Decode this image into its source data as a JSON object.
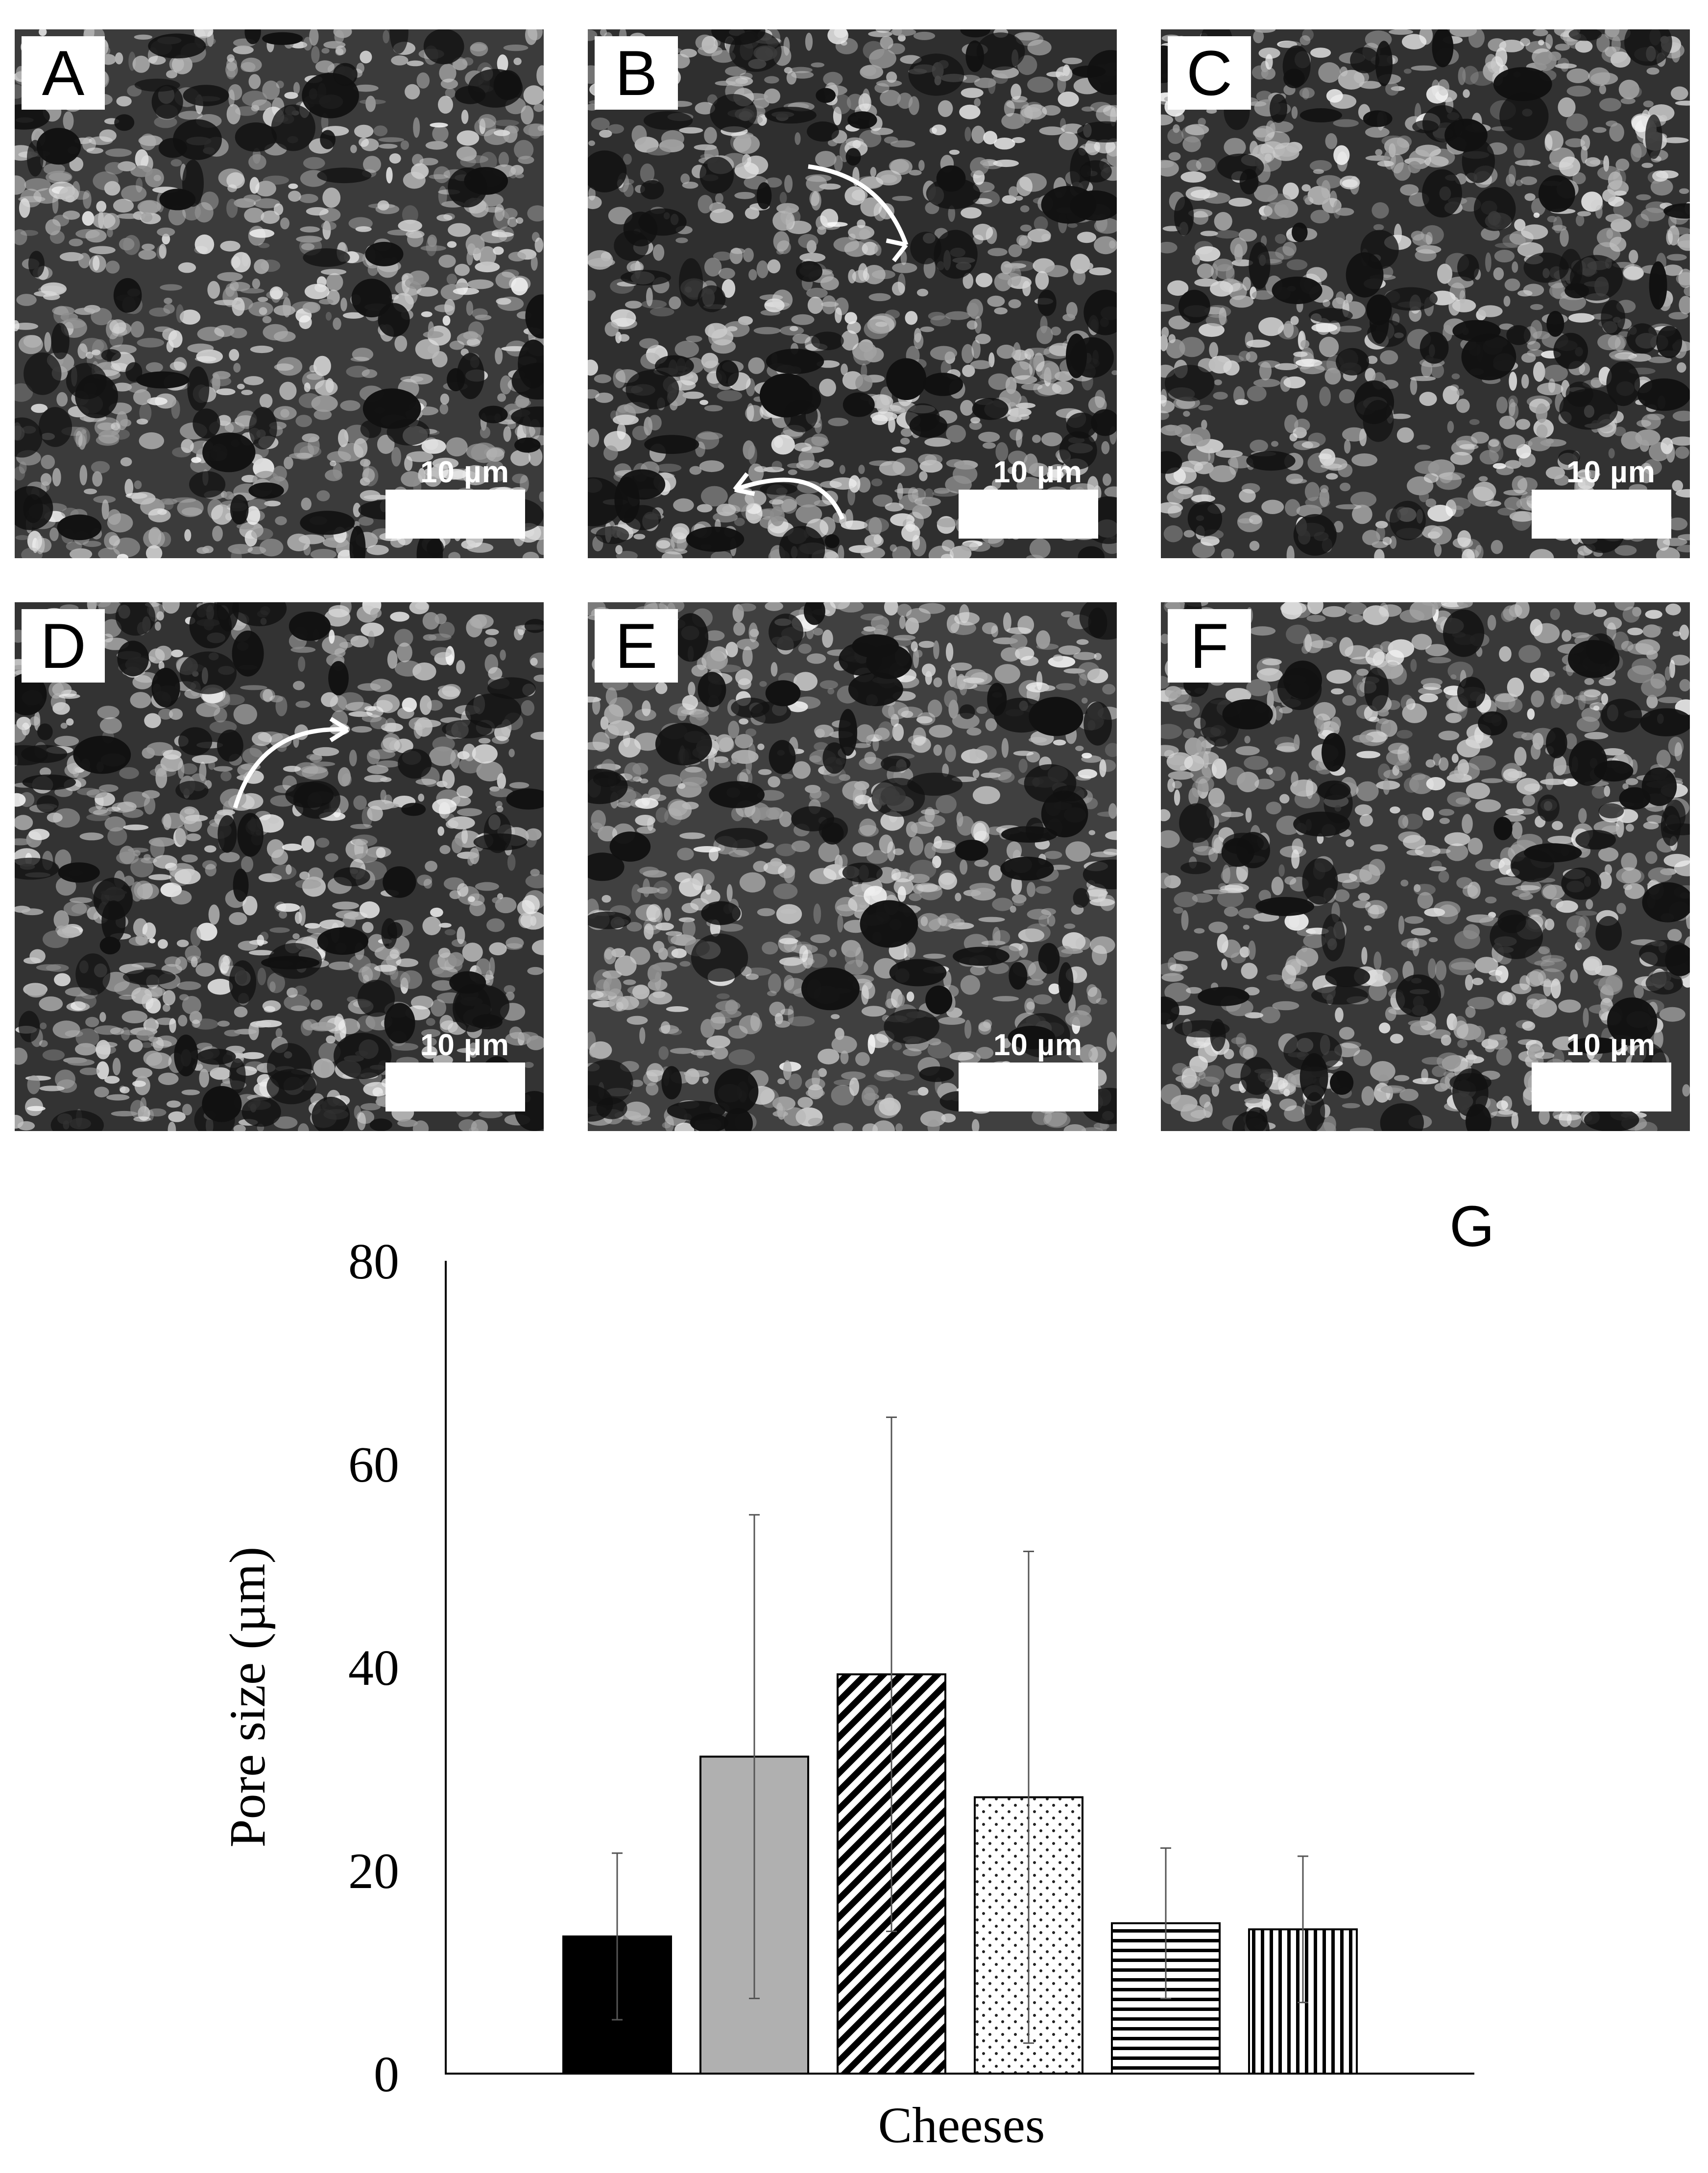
{
  "panels": [
    {
      "letter": "A",
      "scale_label": "10 µm",
      "tone": "#3b3b3b",
      "arrows": 0
    },
    {
      "letter": "B",
      "scale_label": "10 µm",
      "tone": "#2f2f2f",
      "arrows": 2
    },
    {
      "letter": "C",
      "scale_label": "10 µm",
      "tone": "#323232",
      "arrows": 0
    },
    {
      "letter": "D",
      "scale_label": "10 µm",
      "tone": "#333333",
      "arrows": 1
    },
    {
      "letter": "E",
      "scale_label": "10 µm",
      "tone": "#404040",
      "arrows": 0
    },
    {
      "letter": "F",
      "scale_label": "10 µm",
      "tone": "#393939",
      "arrows": 0
    }
  ],
  "chart_data": {
    "type": "bar",
    "panel_label": "G",
    "ylabel": "Pore size (µm)",
    "xlabel": "Cheeses",
    "ylim": [
      0,
      80
    ],
    "yticks": [
      0,
      20,
      40,
      60,
      80
    ],
    "grid": false,
    "bars": [
      {
        "value": 13.5,
        "error": 8.2,
        "fill": "solid-black"
      },
      {
        "value": 31.2,
        "error": 23.8,
        "fill": "solid-gray"
      },
      {
        "value": 39.3,
        "error": 25.3,
        "fill": "diagonal-hatch"
      },
      {
        "value": 27.2,
        "error": 24.2,
        "fill": "dots"
      },
      {
        "value": 14.8,
        "error": 7.4,
        "fill": "horizontal-lines"
      },
      {
        "value": 14.2,
        "error": 7.2,
        "fill": "vertical-lines"
      }
    ]
  }
}
